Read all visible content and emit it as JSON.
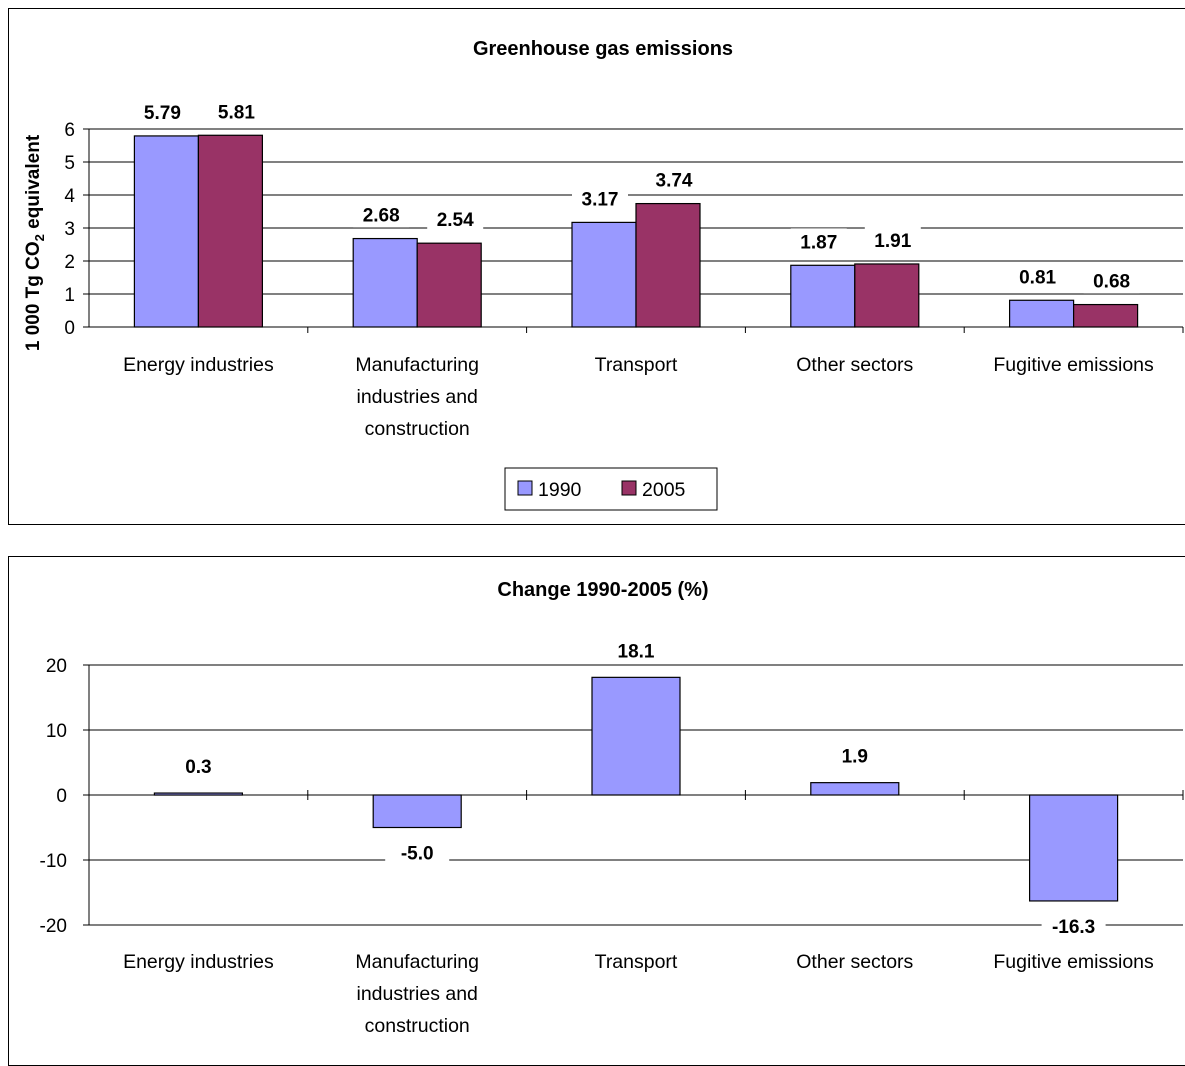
{
  "chart_data": [
    {
      "type": "bar",
      "title": "Greenhouse gas emissions",
      "ylabel": "1 000 Tg CO",
      "ylabel_sub": "2",
      "ylabel_suffix": " equivalent",
      "ylim": [
        0,
        6
      ],
      "yticks": [
        0,
        1,
        2,
        3,
        4,
        5,
        6
      ],
      "grid": true,
      "legend_position": "bottom",
      "categories": [
        "Energy industries",
        [
          "Manufacturing",
          "industries and",
          "construction"
        ],
        "Transport",
        "Other sectors",
        "Fugitive emissions"
      ],
      "series": [
        {
          "name": "1990",
          "color": "#9999ff",
          "values": [
            5.79,
            2.68,
            3.17,
            1.87,
            0.81
          ],
          "labels": [
            "5.79",
            "2.68",
            "3.17",
            "1.87",
            "0.81"
          ]
        },
        {
          "name": "2005",
          "color": "#993366",
          "values": [
            5.81,
            2.54,
            3.74,
            1.91,
            0.68
          ],
          "labels": [
            "5.81",
            "2.54",
            "3.74",
            "1.91",
            "0.68"
          ]
        }
      ]
    },
    {
      "type": "bar",
      "title": "Change 1990-2005 (%)",
      "ylim": [
        -20,
        20
      ],
      "yticks": [
        -20,
        -10,
        0,
        10,
        20
      ],
      "grid": true,
      "categories": [
        "Energy industries",
        [
          "Manufacturing",
          "industries and",
          "construction"
        ],
        "Transport",
        "Other sectors",
        "Fugitive emissions"
      ],
      "series": [
        {
          "color": "#9999ff",
          "values": [
            0.3,
            -5.0,
            18.1,
            1.9,
            -16.3
          ],
          "labels": [
            "0.3",
            "-5.0",
            "18.1",
            "1.9",
            "-16.3"
          ]
        }
      ]
    }
  ]
}
